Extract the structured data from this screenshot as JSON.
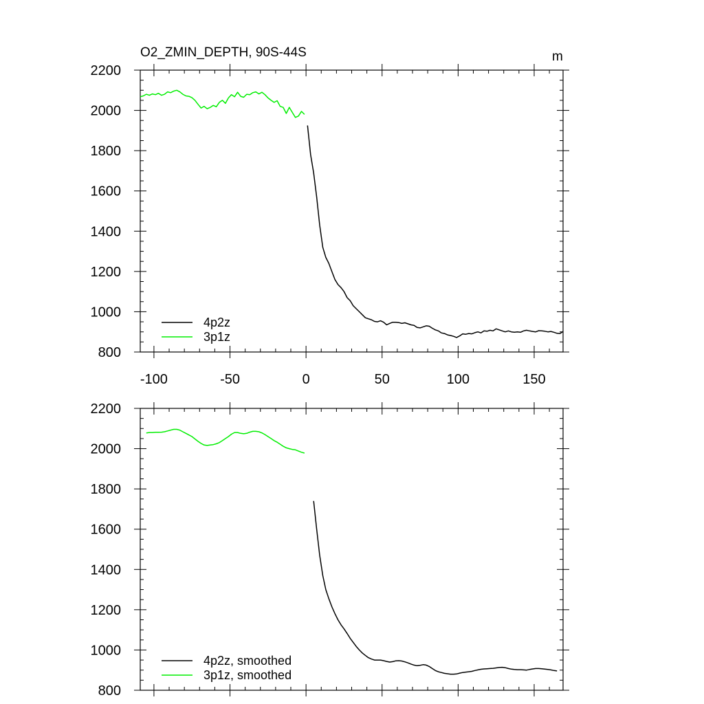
{
  "figure": {
    "title": "O2_ZMIN_DEPTH, 90S-44S",
    "units": "m"
  },
  "colors": {
    "black_series": "#000000",
    "green_series": "#00ee00",
    "axis": "#000000"
  },
  "chart_data": [
    {
      "type": "line",
      "panel": "top",
      "title": "O2_ZMIN_DEPTH, 90S-44S",
      "units_label": "m",
      "xlim": [
        -109,
        169
      ],
      "ylim": [
        800,
        2200
      ],
      "x_ticks": [
        -100,
        -50,
        0,
        50,
        100,
        150
      ],
      "x_tick_labels": [
        "-100",
        "-50",
        "0",
        "50",
        "100",
        "150"
      ],
      "y_ticks": [
        800,
        1000,
        1200,
        1400,
        1600,
        1800,
        2000,
        2200
      ],
      "y_tick_labels": [
        "800",
        "1000",
        "1200",
        "1400",
        "1600",
        "1800",
        "2000",
        "2200"
      ],
      "legend": {
        "position": "bottom-left",
        "entries": [
          "4p2z",
          "3p1z"
        ]
      },
      "series": [
        {
          "name": "4p2z",
          "color": "#000000",
          "x": [
            1,
            3,
            5,
            7,
            9,
            11,
            13,
            15,
            17,
            19,
            21,
            23,
            25,
            27,
            29,
            31,
            33,
            35,
            37,
            39,
            41,
            43,
            45,
            47,
            49,
            51,
            53,
            55,
            57,
            59,
            61,
            63,
            65,
            67,
            69,
            71,
            73,
            75,
            77,
            79,
            81,
            83,
            85,
            87,
            89,
            91,
            93,
            95,
            97,
            99,
            101,
            103,
            105,
            107,
            109,
            111,
            113,
            115,
            117,
            119,
            121,
            123,
            125,
            127,
            129,
            131,
            133,
            135,
            137,
            139,
            141,
            143,
            145,
            147,
            149,
            151,
            153,
            155,
            157,
            159,
            161,
            163,
            165,
            167,
            169
          ],
          "y": [
            1925,
            1780,
            1690,
            1570,
            1430,
            1320,
            1270,
            1240,
            1200,
            1160,
            1135,
            1120,
            1100,
            1070,
            1055,
            1030,
            1015,
            1000,
            985,
            970,
            965,
            960,
            952,
            950,
            955,
            948,
            935,
            942,
            948,
            948,
            946,
            942,
            945,
            940,
            935,
            932,
            922,
            920,
            925,
            930,
            928,
            918,
            910,
            905,
            895,
            892,
            885,
            882,
            878,
            872,
            880,
            890,
            888,
            892,
            890,
            896,
            900,
            895,
            905,
            903,
            908,
            905,
            915,
            910,
            905,
            900,
            905,
            900,
            898,
            900,
            898,
            905,
            908,
            905,
            902,
            900,
            906,
            905,
            903,
            900,
            902,
            898,
            893,
            892,
            902
          ]
        },
        {
          "name": "3p1z",
          "color": "#00ee00",
          "x": [
            -109,
            -107,
            -105,
            -103,
            -101,
            -99,
            -97,
            -95,
            -93,
            -91,
            -89,
            -87,
            -85,
            -83,
            -81,
            -79,
            -77,
            -75,
            -73,
            -71,
            -69,
            -67,
            -65,
            -63,
            -61,
            -59,
            -57,
            -55,
            -53,
            -51,
            -49,
            -47,
            -45,
            -43,
            -41,
            -39,
            -37,
            -35,
            -33,
            -31,
            -29,
            -27,
            -25,
            -23,
            -21,
            -19,
            -17,
            -15,
            -13,
            -11,
            -9,
            -7,
            -5,
            -3,
            -1
          ],
          "y": [
            2068,
            2072,
            2080,
            2075,
            2082,
            2078,
            2085,
            2075,
            2080,
            2092,
            2088,
            2096,
            2100,
            2092,
            2080,
            2072,
            2070,
            2063,
            2050,
            2030,
            2012,
            2020,
            2008,
            2015,
            2025,
            2018,
            2040,
            2050,
            2035,
            2062,
            2078,
            2068,
            2090,
            2070,
            2065,
            2080,
            2078,
            2088,
            2092,
            2082,
            2090,
            2078,
            2062,
            2050,
            2040,
            2048,
            2020,
            2015,
            1985,
            2015,
            1990,
            1965,
            1972,
            1995,
            1980
          ]
        }
      ]
    },
    {
      "type": "line",
      "panel": "bottom",
      "xlim": [
        -109,
        169
      ],
      "ylim": [
        800,
        2200
      ],
      "x_ticks": [
        -100,
        -50,
        0,
        50,
        100,
        150
      ],
      "x_tick_labels": [],
      "y_ticks": [
        800,
        1000,
        1200,
        1400,
        1600,
        1800,
        2000,
        2200
      ],
      "y_tick_labels": [
        "800",
        "1000",
        "1200",
        "1400",
        "1600",
        "1800",
        "2000",
        "2200"
      ],
      "legend": {
        "position": "bottom-left",
        "entries": [
          "4p2z, smoothed",
          "3p1z, smoothed"
        ]
      },
      "series": [
        {
          "name": "4p2z, smoothed",
          "color": "#000000",
          "x": [
            5,
            7,
            9,
            11,
            13,
            15,
            17,
            19,
            21,
            23,
            25,
            27,
            29,
            31,
            33,
            35,
            37,
            39,
            41,
            43,
            45,
            47,
            49,
            51,
            53,
            55,
            57,
            59,
            61,
            63,
            65,
            67,
            69,
            71,
            73,
            75,
            77,
            79,
            81,
            83,
            85,
            87,
            89,
            91,
            93,
            95,
            97,
            99,
            101,
            103,
            105,
            107,
            109,
            111,
            113,
            115,
            117,
            119,
            121,
            123,
            125,
            127,
            129,
            131,
            133,
            135,
            137,
            139,
            141,
            143,
            145,
            147,
            149,
            151,
            153,
            155,
            157,
            159,
            161,
            163,
            165
          ],
          "y": [
            1740,
            1600,
            1470,
            1370,
            1300,
            1255,
            1215,
            1180,
            1150,
            1125,
            1105,
            1082,
            1058,
            1038,
            1018,
            1000,
            985,
            973,
            962,
            955,
            950,
            950,
            950,
            947,
            943,
            940,
            942,
            946,
            947,
            945,
            941,
            936,
            930,
            925,
            922,
            924,
            927,
            925,
            918,
            908,
            898,
            892,
            888,
            884,
            882,
            880,
            880,
            881,
            885,
            888,
            890,
            892,
            894,
            898,
            901,
            904,
            906,
            907,
            908,
            909,
            911,
            913,
            914,
            912,
            908,
            905,
            903,
            902,
            902,
            901,
            900,
            903,
            906,
            908,
            908,
            907,
            905,
            903,
            901,
            898,
            896
          ]
        },
        {
          "name": "3p1z, smoothed",
          "color": "#00ee00",
          "x": [
            -105,
            -103,
            -101,
            -99,
            -97,
            -95,
            -93,
            -91,
            -89,
            -87,
            -85,
            -83,
            -81,
            -79,
            -77,
            -75,
            -73,
            -71,
            -69,
            -67,
            -65,
            -63,
            -61,
            -59,
            -57,
            -55,
            -53,
            -51,
            -49,
            -47,
            -45,
            -43,
            -41,
            -39,
            -37,
            -35,
            -33,
            -31,
            -29,
            -27,
            -25,
            -23,
            -21,
            -19,
            -17,
            -15,
            -13,
            -11,
            -9,
            -7,
            -5,
            -3,
            -1
          ],
          "y": [
            2078,
            2080,
            2080,
            2081,
            2081,
            2082,
            2084,
            2088,
            2092,
            2096,
            2096,
            2092,
            2084,
            2076,
            2068,
            2060,
            2048,
            2036,
            2026,
            2018,
            2016,
            2018,
            2020,
            2024,
            2030,
            2040,
            2050,
            2060,
            2072,
            2080,
            2080,
            2076,
            2074,
            2076,
            2082,
            2086,
            2086,
            2084,
            2078,
            2070,
            2060,
            2050,
            2040,
            2032,
            2022,
            2012,
            2004,
            2000,
            1996,
            1994,
            1988,
            1982,
            1978
          ]
        }
      ]
    }
  ]
}
